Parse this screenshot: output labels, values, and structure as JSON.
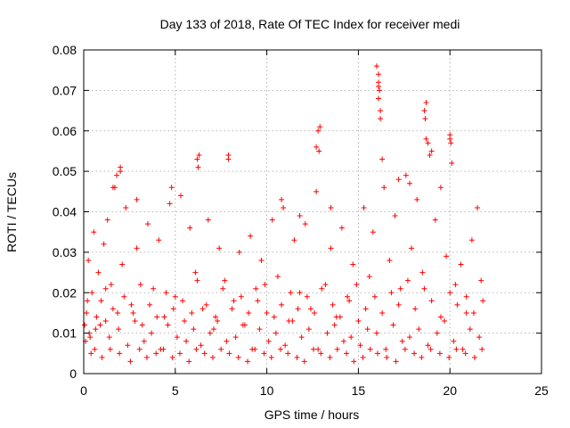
{
  "chart_data": {
    "type": "scatter",
    "title": "Day 133 of 2018, Rate Of TEC Index for receiver medi",
    "xlabel": "GPS time / hours",
    "ylabel": "ROTI / TECUs",
    "xlim": [
      0,
      25
    ],
    "ylim": [
      0,
      0.08
    ],
    "x_ticks": [
      0,
      5,
      10,
      15,
      20,
      25
    ],
    "x_tick_labels": [
      "0",
      "5",
      "10",
      "15",
      "20",
      "25"
    ],
    "y_ticks": [
      0,
      0.01,
      0.02,
      0.03,
      0.04,
      0.05,
      0.06,
      0.07,
      0.08
    ],
    "y_tick_labels": [
      "0",
      "0.01",
      "0.02",
      "0.03",
      "0.04",
      "0.05",
      "0.06",
      "0.07",
      "0.08"
    ],
    "grid": true,
    "marker": "plus",
    "color": "#ff0000",
    "series": [
      {
        "x": [
          0.05,
          0.15,
          0.25,
          0.35,
          0.45,
          0.55,
          0.65,
          0.8,
          0.95,
          1.1,
          1.2,
          1.3,
          1.5,
          1.7,
          1.85,
          2.0,
          2.1,
          2.3,
          2.6,
          2.9,
          3.2,
          3.5,
          3.8,
          4.1,
          4.4,
          4.7,
          5.0,
          5.3,
          5.5,
          5.8,
          6.1,
          6.3,
          6.5,
          6.8,
          7.1,
          7.4,
          7.7,
          7.9,
          8.2,
          8.5,
          8.8,
          9.1,
          9.4,
          9.7,
          10.0,
          10.3,
          10.6,
          10.9,
          11.2,
          11.5,
          11.8,
          12.1,
          12.4,
          12.7,
          12.9,
          13.2,
          13.5,
          13.8,
          14.1,
          14.4,
          14.7,
          15.0,
          15.3,
          15.6,
          15.8,
          16.0,
          16.1,
          16.2,
          16.4,
          16.7,
          17.0,
          17.3,
          17.6,
          17.9,
          18.2,
          18.5,
          18.7,
          18.9,
          19.2,
          19.5,
          19.8,
          20.0,
          20.3,
          20.6,
          20.9,
          21.2,
          21.5,
          21.7,
          0.1,
          0.3,
          0.6,
          0.9,
          1.4,
          1.9,
          2.4,
          2.8,
          3.3,
          3.7,
          4.2,
          4.6,
          5.1,
          5.6,
          6.0,
          6.4,
          6.9,
          7.3,
          7.8,
          8.3,
          8.7,
          9.2,
          9.6,
          10.1,
          10.5,
          11.0,
          11.4,
          11.9,
          12.3,
          12.8,
          13.3,
          13.7,
          14.2,
          14.6,
          15.1,
          15.5,
          16.0,
          16.5,
          16.9,
          17.4,
          17.8,
          18.3,
          18.8,
          19.3,
          19.7,
          20.2,
          20.7,
          21.1,
          21.6,
          0.2,
          0.7,
          1.2,
          1.6,
          2.2,
          2.7,
          3.1,
          3.6,
          4.0,
          4.5,
          4.9,
          5.4,
          5.9,
          6.2,
          6.7,
          7.2,
          7.6,
          8.1,
          8.6,
          9.0,
          9.5,
          9.9,
          10.4,
          10.8,
          11.3,
          11.7,
          12.2,
          12.6,
          13.0,
          13.6,
          14.0,
          14.5,
          14.9,
          15.4,
          15.9,
          16.3,
          16.8,
          17.2,
          17.7,
          18.1,
          18.6,
          19.0,
          19.5,
          20.0,
          20.4,
          20.9,
          21.3,
          21.8,
          16.1,
          16.1,
          16.15,
          16.2,
          16.1,
          18.6,
          18.65,
          18.7,
          20.0,
          20.05,
          12.8,
          12.85,
          6.2,
          6.25,
          7.9,
          1.8,
          2.0,
          17.2,
          17.8,
          18.8,
          19.0,
          20.1,
          12.7,
          16.3,
          1.6,
          10.8,
          13.5,
          11.8,
          4.8,
          2.9,
          0.4,
          1.0,
          1.45,
          1.95,
          2.55,
          3.05,
          3.45,
          3.95,
          4.35,
          4.85,
          5.25,
          5.75,
          6.15,
          6.6,
          7.05,
          7.5,
          7.95,
          8.45,
          8.95,
          9.35,
          9.85,
          10.25,
          10.75,
          11.15,
          11.65,
          12.05,
          12.55,
          12.95,
          13.45,
          13.85,
          14.35,
          14.75,
          15.25,
          15.65,
          16.05,
          16.55,
          17.05,
          17.55,
          18.05,
          18.45,
          18.95,
          19.45,
          19.95,
          20.35,
          20.85,
          21.35,
          21.75
        ],
        "y": [
          0.012,
          0.015,
          0.028,
          0.009,
          0.02,
          0.035,
          0.011,
          0.025,
          0.018,
          0.032,
          0.013,
          0.038,
          0.022,
          0.046,
          0.015,
          0.051,
          0.027,
          0.041,
          0.017,
          0.031,
          0.012,
          0.037,
          0.021,
          0.033,
          0.014,
          0.042,
          0.019,
          0.044,
          0.013,
          0.036,
          0.025,
          0.054,
          0.016,
          0.038,
          0.011,
          0.031,
          0.023,
          0.053,
          0.018,
          0.03,
          0.012,
          0.034,
          0.021,
          0.028,
          0.015,
          0.038,
          0.024,
          0.041,
          0.013,
          0.033,
          0.02,
          0.037,
          0.016,
          0.045,
          0.061,
          0.022,
          0.031,
          0.014,
          0.036,
          0.019,
          0.027,
          0.013,
          0.041,
          0.024,
          0.035,
          0.076,
          0.068,
          0.063,
          0.046,
          0.028,
          0.039,
          0.021,
          0.049,
          0.031,
          0.043,
          0.025,
          0.067,
          0.054,
          0.038,
          0.046,
          0.029,
          0.059,
          0.022,
          0.027,
          0.015,
          0.033,
          0.041,
          0.023,
          0.008,
          0.01,
          0.006,
          0.012,
          0.009,
          0.011,
          0.007,
          0.013,
          0.008,
          0.01,
          0.006,
          0.012,
          0.009,
          0.008,
          0.011,
          0.007,
          0.01,
          0.013,
          0.008,
          0.009,
          0.012,
          0.006,
          0.011,
          0.008,
          0.01,
          0.007,
          0.013,
          0.009,
          0.011,
          0.006,
          0.01,
          0.012,
          0.008,
          0.009,
          0.007,
          0.011,
          0.01,
          0.006,
          0.012,
          0.008,
          0.009,
          0.011,
          0.007,
          0.01,
          0.013,
          0.008,
          0.006,
          0.011,
          0.009,
          0.018,
          0.014,
          0.021,
          0.016,
          0.019,
          0.015,
          0.022,
          0.017,
          0.014,
          0.02,
          0.016,
          0.018,
          0.015,
          0.023,
          0.017,
          0.014,
          0.021,
          0.016,
          0.019,
          0.015,
          0.018,
          0.022,
          0.014,
          0.017,
          0.02,
          0.016,
          0.019,
          0.015,
          0.021,
          0.017,
          0.014,
          0.018,
          0.022,
          0.016,
          0.019,
          0.015,
          0.02,
          0.017,
          0.023,
          0.016,
          0.021,
          0.018,
          0.014,
          0.02,
          0.017,
          0.019,
          0.015,
          0.018,
          0.074,
          0.071,
          0.07,
          0.065,
          0.072,
          0.065,
          0.063,
          0.058,
          0.058,
          0.057,
          0.06,
          0.055,
          0.053,
          0.051,
          0.054,
          0.049,
          0.05,
          0.048,
          0.047,
          0.057,
          0.055,
          0.052,
          0.056,
          0.053,
          0.046,
          0.043,
          0.041,
          0.039,
          0.046,
          0.043,
          0.005,
          0.004,
          0.006,
          0.005,
          0.003,
          0.006,
          0.004,
          0.005,
          0.006,
          0.004,
          0.005,
          0.003,
          0.006,
          0.005,
          0.004,
          0.006,
          0.005,
          0.004,
          0.003,
          0.006,
          0.005,
          0.004,
          0.006,
          0.005,
          0.004,
          0.003,
          0.006,
          0.005,
          0.004,
          0.006,
          0.005,
          0.003,
          0.004,
          0.006,
          0.005,
          0.004,
          0.003,
          0.006,
          0.005,
          0.004,
          0.006,
          0.005,
          0.004,
          0.006,
          0.005,
          0.004,
          0.006
        ]
      }
    ]
  }
}
